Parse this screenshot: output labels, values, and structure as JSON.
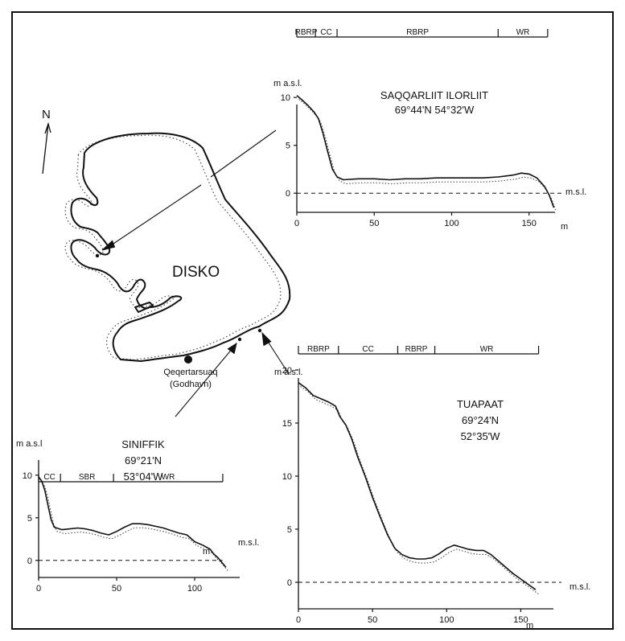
{
  "map": {
    "north_label": "N",
    "island_label": "DISKO",
    "town_name": "Qeqertarsuaq",
    "town_alt_name": "(Godhavn)"
  },
  "chart_data": [
    {
      "type": "line",
      "id": "saqqarliit",
      "title": "SAQQARLIIT ILORLIIT",
      "coords": "69°44'N   54°32'W",
      "ylabel": "m a.s.l.",
      "xunit": "m",
      "msl_label": "m.s.l.",
      "xlim": [
        0,
        168
      ],
      "ylim": [
        -2,
        12
      ],
      "xticks": [
        0,
        50,
        100,
        150
      ],
      "yticks": [
        0,
        5,
        10
      ],
      "x": [
        0,
        3,
        7,
        11,
        14,
        17,
        20,
        23,
        26,
        30,
        40,
        50,
        60,
        70,
        80,
        90,
        100,
        110,
        120,
        130,
        135,
        140,
        145,
        150,
        155,
        160,
        163,
        166
      ],
      "y": [
        10.2,
        9.8,
        9.2,
        8.5,
        7.8,
        6.2,
        4.3,
        2.5,
        1.7,
        1.4,
        1.5,
        1.5,
        1.4,
        1.5,
        1.5,
        1.6,
        1.6,
        1.6,
        1.6,
        1.7,
        1.8,
        1.9,
        2.1,
        2.0,
        1.6,
        0.7,
        -0.2,
        -1.5
      ],
      "zones": [
        {
          "label": "RBRP",
          "start": 0,
          "end": 12
        },
        {
          "label": "CC",
          "start": 12,
          "end": 26
        },
        {
          "label": "RBRP",
          "start": 26,
          "end": 130
        },
        {
          "label": "WR",
          "start": 130,
          "end": 162
        }
      ]
    },
    {
      "type": "line",
      "id": "tuapaat",
      "title": "TUAPAAT",
      "coords_lat": "69°24'N",
      "coords_lon": "52°35'W",
      "ylabel": "m a.s.l.",
      "xunit": "m",
      "msl_label": "m.s.l.",
      "xlim": [
        0,
        172
      ],
      "ylim": [
        -2.5,
        21
      ],
      "xticks": [
        0,
        50,
        100,
        150
      ],
      "yticks": [
        0,
        5,
        10,
        15,
        20
      ],
      "x": [
        0,
        5,
        10,
        15,
        20,
        25,
        28,
        32,
        36,
        40,
        45,
        50,
        55,
        60,
        65,
        70,
        75,
        80,
        85,
        90,
        95,
        100,
        105,
        110,
        115,
        120,
        125,
        130,
        135,
        140,
        145,
        150,
        155,
        160
      ],
      "y": [
        18.8,
        18.3,
        17.6,
        17.3,
        17.0,
        16.6,
        15.6,
        14.8,
        13.5,
        11.8,
        10.0,
        8.0,
        6.2,
        4.5,
        3.2,
        2.6,
        2.3,
        2.2,
        2.2,
        2.3,
        2.7,
        3.2,
        3.5,
        3.3,
        3.1,
        3.0,
        3.0,
        2.6,
        2.0,
        1.4,
        0.8,
        0.3,
        -0.2,
        -0.7
      ],
      "zones": [
        {
          "label": "RBRP",
          "start": 0,
          "end": 27
        },
        {
          "label": "CC",
          "start": 27,
          "end": 67
        },
        {
          "label": "RBRP",
          "start": 67,
          "end": 92
        },
        {
          "label": "WR",
          "start": 92,
          "end": 162
        }
      ]
    },
    {
      "type": "line",
      "id": "siniffik",
      "title": "SINIFFIK",
      "coords_lat": "69°21'N",
      "coords_lon": "53°04'W",
      "ylabel": "m a.s.l",
      "xunit": "m",
      "msl_label": "m.s.l.",
      "xlim": [
        0,
        123
      ],
      "ylim": [
        -2,
        11
      ],
      "xticks": [
        0,
        50,
        100
      ],
      "yticks": [
        0,
        5,
        10
      ],
      "x": [
        0,
        2,
        4,
        6,
        8,
        10,
        15,
        20,
        25,
        30,
        35,
        40,
        45,
        50,
        55,
        60,
        65,
        70,
        75,
        80,
        85,
        90,
        95,
        100,
        105,
        110,
        112,
        115,
        120
      ],
      "y": [
        9.8,
        9.3,
        8.2,
        6.5,
        4.8,
        3.9,
        3.6,
        3.7,
        3.8,
        3.7,
        3.5,
        3.2,
        3.0,
        3.4,
        3.9,
        4.3,
        4.3,
        4.2,
        4.0,
        3.8,
        3.5,
        3.2,
        3.0,
        2.2,
        1.8,
        1.3,
        0.8,
        0.3,
        -0.8
      ],
      "zones": [
        {
          "label": "CC",
          "start": 0,
          "end": 14
        },
        {
          "label": "SBR",
          "start": 14,
          "end": 48
        },
        {
          "label": "WR",
          "start": 48,
          "end": 118
        }
      ]
    }
  ]
}
